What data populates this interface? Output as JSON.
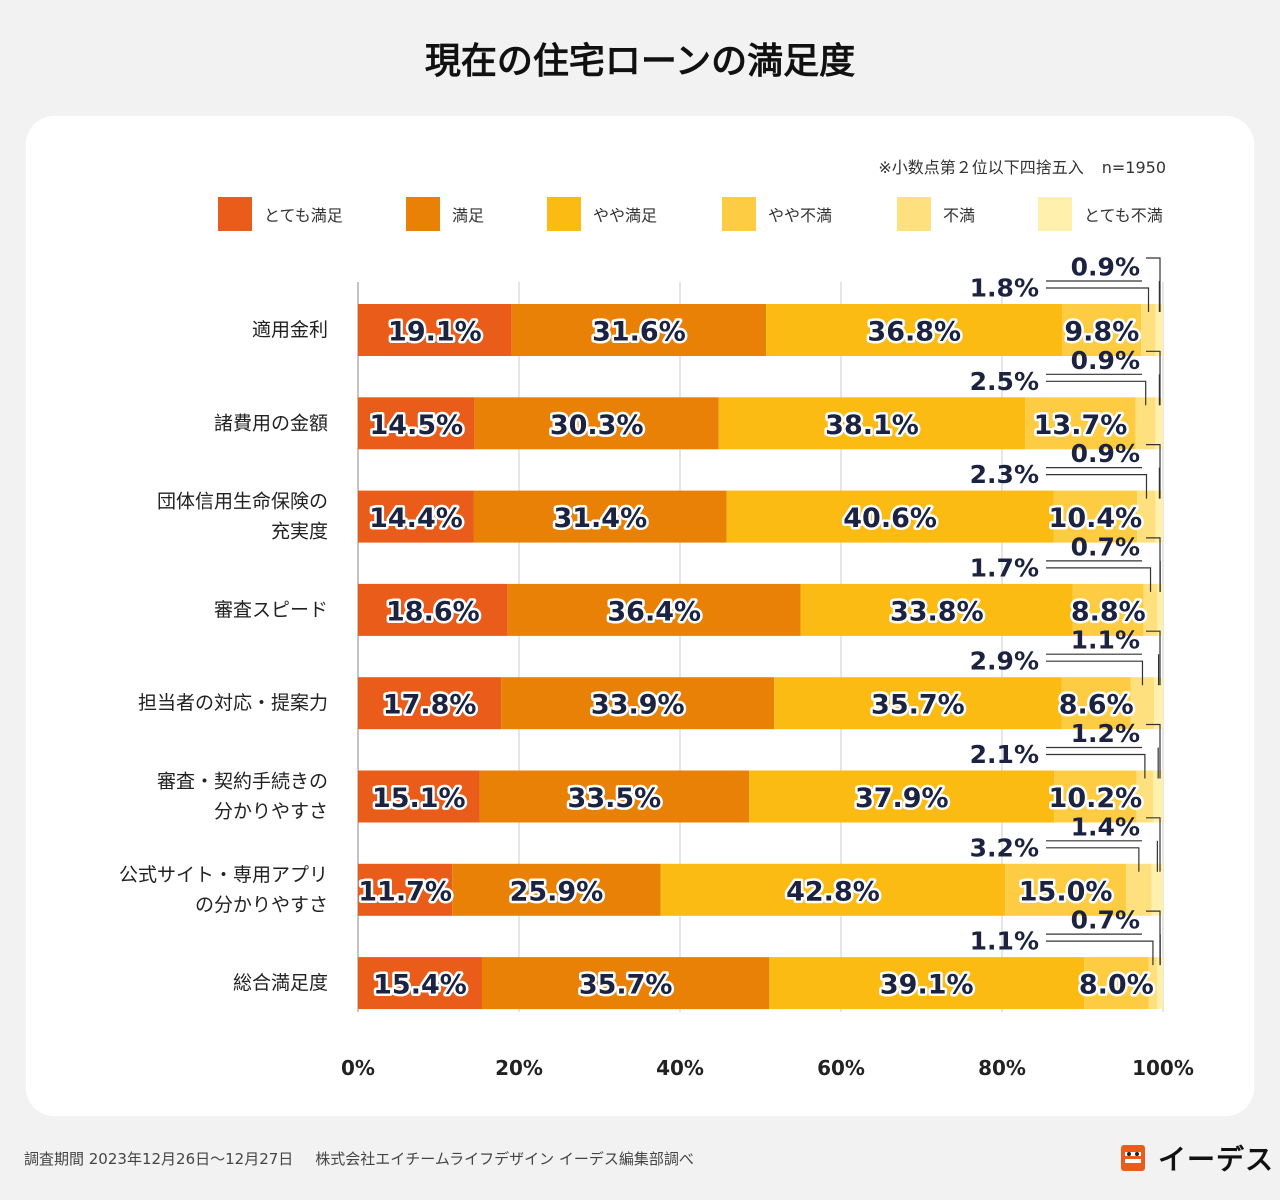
{
  "title": "現在の住宅ローンの満足度",
  "note": "※小数点第２位以下四捨五入",
  "sample_size": "n=1950",
  "legend": [
    {
      "label": "とても満足",
      "color": "#ea5c1a"
    },
    {
      "label": "満足",
      "color": "#ea8107"
    },
    {
      "label": "やや満足",
      "color": "#fcbb12"
    },
    {
      "label": "やや不満",
      "color": "#fdcc42"
    },
    {
      "label": "不満",
      "color": "#fee07e"
    },
    {
      "label": "とても不満",
      "color": "#fff0ae"
    }
  ],
  "chart_data": {
    "type": "bar",
    "orientation": "horizontal",
    "stacked": true,
    "title": "現在の住宅ローンの満足度",
    "categories": [
      [
        "適用金利"
      ],
      [
        "諸費用の金額"
      ],
      [
        "団体信用生命保険の",
        "充実度"
      ],
      [
        "審査スピード"
      ],
      [
        "担当者の対応・提案力"
      ],
      [
        "審査・契約手続きの",
        "分かりやすさ"
      ],
      [
        "公式サイト・専用アプリ",
        "の分かりやすさ"
      ],
      [
        "総合満足度"
      ]
    ],
    "series": [
      {
        "name": "とても満足",
        "values": [
          19.1,
          14.5,
          14.4,
          18.6,
          17.8,
          15.1,
          11.7,
          15.4
        ]
      },
      {
        "name": "満足",
        "values": [
          31.6,
          30.3,
          31.4,
          36.4,
          33.9,
          33.5,
          25.9,
          35.7
        ]
      },
      {
        "name": "やや満足",
        "values": [
          36.8,
          38.1,
          40.6,
          33.8,
          35.7,
          37.9,
          42.8,
          39.1
        ]
      },
      {
        "name": "やや不満",
        "values": [
          9.8,
          13.7,
          10.4,
          8.8,
          8.6,
          10.2,
          15.0,
          8.0
        ]
      },
      {
        "name": "不満",
        "values": [
          1.8,
          2.5,
          2.3,
          1.7,
          2.9,
          2.1,
          3.2,
          1.1
        ]
      },
      {
        "name": "とても不満",
        "values": [
          0.9,
          0.9,
          0.9,
          0.7,
          1.1,
          1.2,
          1.4,
          0.7
        ]
      }
    ],
    "xlim": [
      0,
      100
    ],
    "xticks": [
      "0%",
      "20%",
      "40%",
      "60%",
      "80%",
      "100%"
    ],
    "grid": true,
    "legend_position": "top"
  },
  "footer": {
    "period": "調査期間 2023年12月26日〜12月27日",
    "credit": "株式会社エイチームライフデザイン イーデス編集部調べ"
  },
  "brand": {
    "logo_text": "イーデス"
  }
}
